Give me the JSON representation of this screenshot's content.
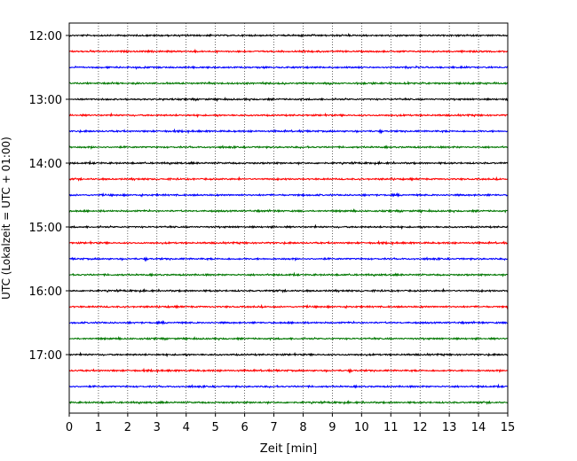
{
  "chart_data": {
    "type": "line",
    "title": "",
    "xlabel": "Zeit  [min]",
    "ylabel": "UTC (Lokalzeit = UTC + 01:00)",
    "xlim": [
      0,
      15
    ],
    "x_ticks": [
      "0",
      "1",
      "2",
      "3",
      "4",
      "5",
      "6",
      "7",
      "8",
      "9",
      "10",
      "11",
      "12",
      "13",
      "14",
      "15"
    ],
    "y_ticks": [
      "12:00",
      "13:00",
      "14:00",
      "15:00",
      "16:00",
      "17:00"
    ],
    "grid": "vertical dotted at each minute",
    "trace_interval_minutes": 15,
    "first_trace": "12:00",
    "trace_count": 24,
    "colors": [
      "#000000",
      "#ff0000",
      "#0000ff",
      "#007700"
    ],
    "traces": [
      {
        "start": "12:00",
        "color_index": 0
      },
      {
        "start": "12:15",
        "color_index": 1
      },
      {
        "start": "12:30",
        "color_index": 2
      },
      {
        "start": "12:45",
        "color_index": 3
      },
      {
        "start": "13:00",
        "color_index": 0
      },
      {
        "start": "13:15",
        "color_index": 1
      },
      {
        "start": "13:30",
        "color_index": 2
      },
      {
        "start": "13:45",
        "color_index": 3
      },
      {
        "start": "14:00",
        "color_index": 0
      },
      {
        "start": "14:15",
        "color_index": 1
      },
      {
        "start": "14:30",
        "color_index": 2
      },
      {
        "start": "14:45",
        "color_index": 3
      },
      {
        "start": "15:00",
        "color_index": 0
      },
      {
        "start": "15:15",
        "color_index": 1
      },
      {
        "start": "15:30",
        "color_index": 2
      },
      {
        "start": "15:45",
        "color_index": 3
      },
      {
        "start": "16:00",
        "color_index": 0
      },
      {
        "start": "16:15",
        "color_index": 1
      },
      {
        "start": "16:30",
        "color_index": 2
      },
      {
        "start": "16:45",
        "color_index": 3
      },
      {
        "start": "17:00",
        "color_index": 0
      },
      {
        "start": "17:15",
        "color_index": 1
      },
      {
        "start": "17:30",
        "color_index": 2
      },
      {
        "start": "17:45",
        "color_index": 3
      }
    ]
  }
}
